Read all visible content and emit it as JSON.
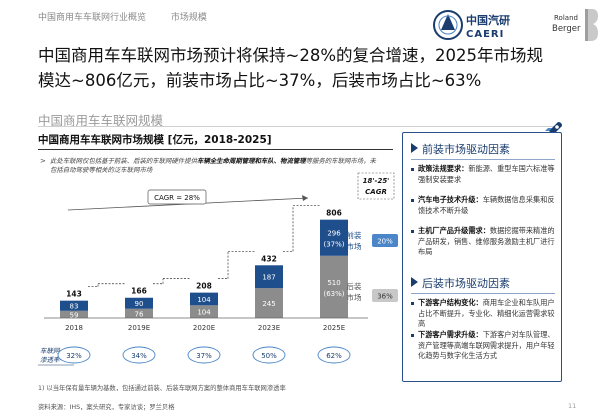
{
  "nav": {
    "section1": "中国商用车车联网行业概览",
    "section2": "市场规模"
  },
  "logos": {
    "caeri_cn": "中国汽研",
    "caeri_en": "CAERI",
    "rb_line1": "Roland",
    "rb_line2": "Berger"
  },
  "headline": "中国商用车车联网市场预计将保持~28%的复合增速，2025年市场规模达~806亿元，前装市场占比~37%，后装市场占比~63%",
  "subhead": "中国商用车车联网规模",
  "chart_title": "中国商用车车联网市场规模 [亿元，2018-2025]",
  "note": {
    "arrow": ">",
    "pre": "此处车联网仅包括基于前装、后装的车联网硬件提供",
    "bold": "车辆全生命周期管理和车队、物流管理",
    "post": "等服务的车联网市场，未包括自动驾驶等相关的泛车联网市场"
  },
  "chart_data": {
    "type": "bar",
    "stacked": true,
    "categories": [
      "2018",
      "2019E",
      "2020E",
      "2023E",
      "2025E"
    ],
    "series": [
      {
        "name": "后装市场",
        "values": [
          59,
          76,
          104,
          245,
          510
        ],
        "color": "#8c8c8c"
      },
      {
        "name": "前装市场",
        "values": [
          83,
          90,
          104,
          187,
          296
        ],
        "color": "#1f4e8c"
      }
    ],
    "totals": [
      143,
      166,
      208,
      432,
      806
    ],
    "last_labels": {
      "front_pct": "(37%)",
      "back_pct": "(63%)"
    },
    "cagr_label": "CAGR = 28%",
    "cagr_box": [
      "18'-25'",
      "CAGR"
    ],
    "legend_front": [
      "前装",
      "市场"
    ],
    "legend_back": [
      "后装",
      "市场"
    ],
    "cagr_front": "20%",
    "cagr_back": "36%",
    "penetration_label": [
      "车联网",
      "渗透率¹⁾"
    ],
    "penetration": [
      "32%",
      "34%",
      "37%",
      "50%",
      "62%"
    ],
    "ylim": [
      0,
      900
    ]
  },
  "right_panel": {
    "front_title": "前装市场驱动因素",
    "front_items": [
      {
        "bold": "政策法规要求：",
        "text": "新能源、重型车国六标准等强制安装要求"
      },
      {
        "bold": "汽车电子技术升级：",
        "text": "车辆数据信息采集和反馈技术不断升级"
      },
      {
        "bold": "主机厂产品升级需求：",
        "text": "数据挖掘带来精准的产品研发，销售、维修服务激励主机厂进行布局"
      }
    ],
    "back_title": "后装市场驱动因素",
    "back_items": [
      {
        "bold": "下游客户结构变化：",
        "text": "商用车企业和车队用户占比不断提升，专业化、精细化运营需求较高"
      },
      {
        "bold": "下游客户需求升级：",
        "text": "下游客户对车队管理、资产管理等高端车联网需求提升，用户年轻化趋势与数字化生活方式"
      }
    ]
  },
  "footnote": "1) 以当年保有量车辆为基数，包括通过前装、后装车联网方案的整体商用车车联网渗透率",
  "source": "资料来源：IHS，案头研究，专家访谈；罗兰贝格",
  "page_number": "11",
  "colors": {
    "navy": "#1a3c6e",
    "front": "#1f4e8c",
    "back": "#8c8c8c",
    "circle": "#4a86c8"
  }
}
